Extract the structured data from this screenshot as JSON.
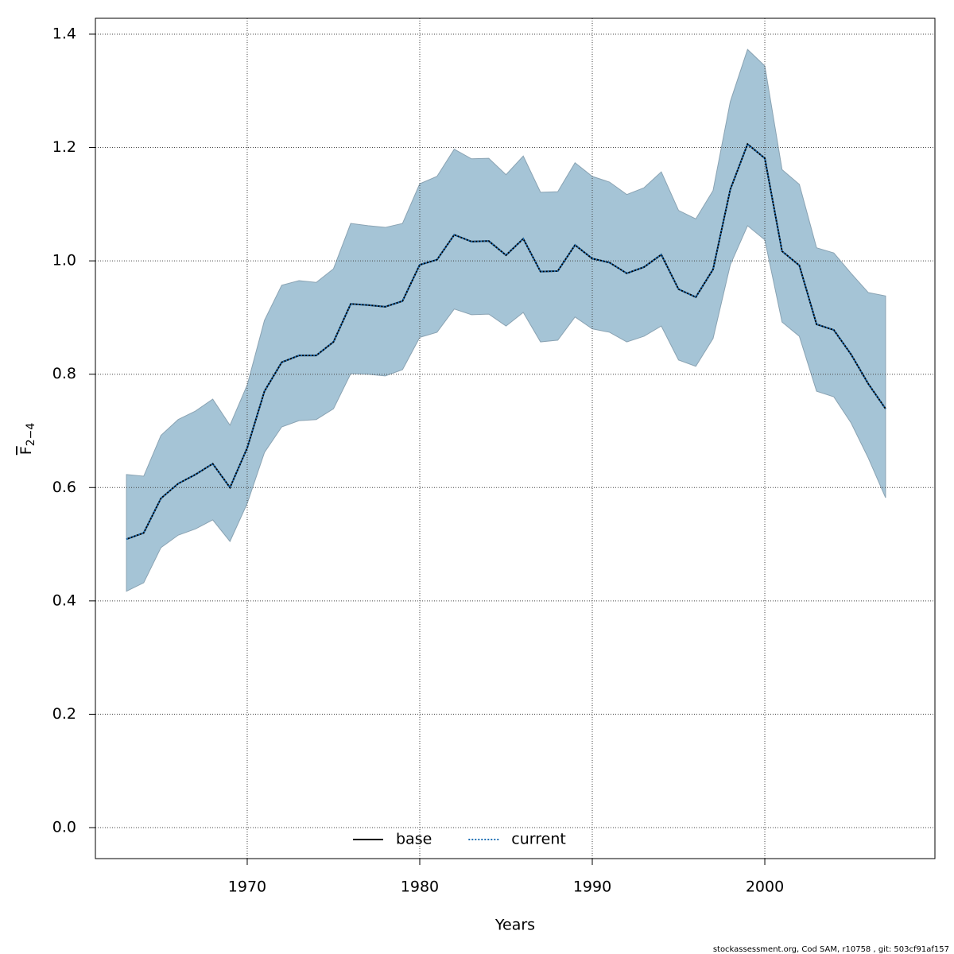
{
  "chart_data": {
    "type": "line",
    "xlabel": "Years",
    "ylabel": {
      "main": "F",
      "sub": "2−4"
    },
    "footer": "stockassessment.org, Cod SAM, r10758 , git: 503cf91af157",
    "x": [
      1963,
      1964,
      1965,
      1966,
      1967,
      1968,
      1969,
      1970,
      1971,
      1972,
      1973,
      1974,
      1975,
      1976,
      1977,
      1978,
      1979,
      1980,
      1981,
      1982,
      1983,
      1984,
      1985,
      1986,
      1987,
      1988,
      1989,
      1990,
      1991,
      1992,
      1993,
      1994,
      1995,
      1996,
      1997,
      1998,
      1999,
      2000,
      2001,
      2002,
      2003,
      2004,
      2005,
      2006,
      2007
    ],
    "series": [
      {
        "name": "base",
        "color": "#000000",
        "dash": "solid",
        "values": [
          0.509,
          0.52,
          0.581,
          0.607,
          0.623,
          0.642,
          0.6,
          0.67,
          0.77,
          0.821,
          0.833,
          0.833,
          0.857,
          0.924,
          0.922,
          0.919,
          0.929,
          0.993,
          1.002,
          1.046,
          1.034,
          1.035,
          1.01,
          1.039,
          0.981,
          0.982,
          1.028,
          1.004,
          0.997,
          0.978,
          0.989,
          1.011,
          0.95,
          0.936,
          0.985,
          1.126,
          1.206,
          1.181,
          1.017,
          0.992,
          0.888,
          0.878,
          0.835,
          0.783,
          0.739
        ]
      },
      {
        "name": "current",
        "color": "#1f6fb4",
        "dash": "dotted",
        "values": [
          0.509,
          0.52,
          0.581,
          0.607,
          0.623,
          0.642,
          0.6,
          0.67,
          0.77,
          0.821,
          0.833,
          0.833,
          0.857,
          0.924,
          0.922,
          0.919,
          0.929,
          0.993,
          1.002,
          1.046,
          1.034,
          1.035,
          1.01,
          1.039,
          0.981,
          0.982,
          1.028,
          1.004,
          0.997,
          0.978,
          0.989,
          1.011,
          0.95,
          0.936,
          0.985,
          1.126,
          1.206,
          1.181,
          1.017,
          0.992,
          0.888,
          0.878,
          0.835,
          0.783,
          0.739
        ]
      }
    ],
    "band": {
      "color": "#a5c4d6",
      "lower": [
        0.417,
        0.432,
        0.494,
        0.516,
        0.527,
        0.543,
        0.505,
        0.572,
        0.662,
        0.707,
        0.718,
        0.72,
        0.739,
        0.801,
        0.8,
        0.797,
        0.808,
        0.865,
        0.874,
        0.915,
        0.905,
        0.906,
        0.885,
        0.909,
        0.857,
        0.86,
        0.901,
        0.88,
        0.874,
        0.857,
        0.867,
        0.885,
        0.825,
        0.814,
        0.863,
        0.993,
        1.062,
        1.037,
        0.892,
        0.867,
        0.77,
        0.76,
        0.714,
        0.652,
        0.582
      ],
      "upper": [
        0.623,
        0.62,
        0.692,
        0.72,
        0.735,
        0.756,
        0.71,
        0.781,
        0.895,
        0.957,
        0.965,
        0.962,
        0.986,
        1.066,
        1.062,
        1.059,
        1.066,
        1.136,
        1.149,
        1.197,
        1.18,
        1.181,
        1.152,
        1.185,
        1.121,
        1.122,
        1.173,
        1.149,
        1.139,
        1.117,
        1.129,
        1.157,
        1.089,
        1.074,
        1.124,
        1.281,
        1.373,
        1.344,
        1.161,
        1.135,
        1.023,
        1.014,
        0.978,
        0.944,
        0.938
      ]
    },
    "xlim": [
      1961.2,
      2009.86
    ],
    "ylim": [
      -0.0547,
      1.428
    ],
    "xticks": [
      1970,
      1980,
      1990,
      2000
    ],
    "yticks": [
      {
        "value": 0,
        "label": "0.0"
      },
      {
        "value": 0.2,
        "label": "0.2"
      },
      {
        "value": 0.4,
        "label": "0.4"
      },
      {
        "value": 0.6,
        "label": "0.6"
      },
      {
        "value": 0.8,
        "label": "0.8"
      },
      {
        "value": 1,
        "label": "1.0"
      },
      {
        "value": 1.2,
        "label": "1.2"
      },
      {
        "value": 1.4,
        "label": "1.4"
      }
    ],
    "grid": true,
    "legend": "bottom"
  }
}
